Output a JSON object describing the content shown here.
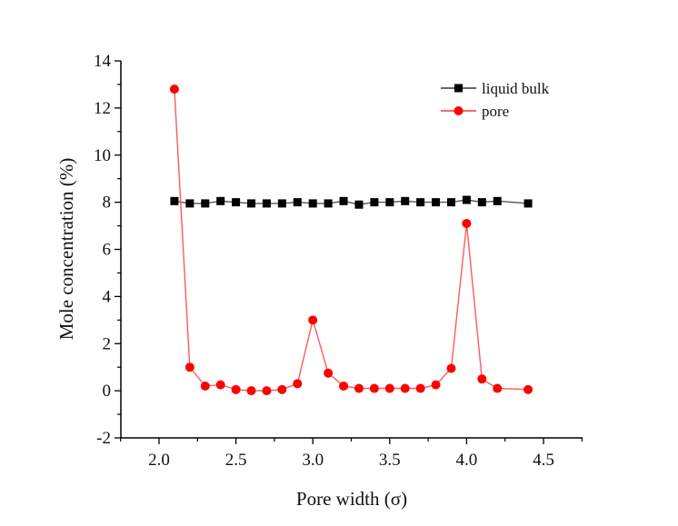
{
  "chart_data": {
    "type": "line",
    "title": "",
    "xlabel": "Pore width (σ)",
    "ylabel": "Mole concentration (%)",
    "xlim": [
      1.75,
      4.75
    ],
    "ylim": [
      -2,
      14
    ],
    "x_ticks": [
      "2.0",
      "2.5",
      "3.0",
      "3.5",
      "4.0",
      "4.5"
    ],
    "x_tick_values": [
      2.0,
      2.5,
      3.0,
      3.5,
      4.0,
      4.5
    ],
    "y_ticks": [
      "-2",
      "0",
      "2",
      "4",
      "6",
      "8",
      "10",
      "12",
      "14"
    ],
    "y_tick_values": [
      -2,
      0,
      2,
      4,
      6,
      8,
      10,
      12,
      14
    ],
    "grid": false,
    "legend_position": "top-right",
    "series": [
      {
        "name": "liquid bulk",
        "color": "#000000",
        "marker": "square",
        "x": [
          2.1,
          2.2,
          2.3,
          2.4,
          2.5,
          2.6,
          2.7,
          2.8,
          2.9,
          3.0,
          3.1,
          3.2,
          3.3,
          3.4,
          3.5,
          3.6,
          3.7,
          3.8,
          3.9,
          4.0,
          4.1,
          4.2,
          4.4
        ],
        "values": [
          8.05,
          7.95,
          7.95,
          8.05,
          8.0,
          7.95,
          7.95,
          7.95,
          8.0,
          7.95,
          7.95,
          8.05,
          7.9,
          8.0,
          8.0,
          8.05,
          8.0,
          8.0,
          8.0,
          8.1,
          8.0,
          8.05,
          7.95
        ]
      },
      {
        "name": "pore",
        "color": "#ff0000",
        "marker": "circle",
        "x": [
          2.1,
          2.2,
          2.3,
          2.4,
          2.5,
          2.6,
          2.7,
          2.8,
          2.9,
          3.0,
          3.1,
          3.2,
          3.3,
          3.4,
          3.5,
          3.6,
          3.7,
          3.8,
          3.9,
          4.0,
          4.1,
          4.2,
          4.4
        ],
        "values": [
          12.8,
          1.0,
          0.2,
          0.25,
          0.05,
          0.0,
          0.0,
          0.05,
          0.3,
          3.0,
          0.75,
          0.2,
          0.1,
          0.1,
          0.1,
          0.1,
          0.1,
          0.25,
          0.95,
          7.1,
          0.5,
          0.1,
          0.05
        ]
      }
    ]
  }
}
